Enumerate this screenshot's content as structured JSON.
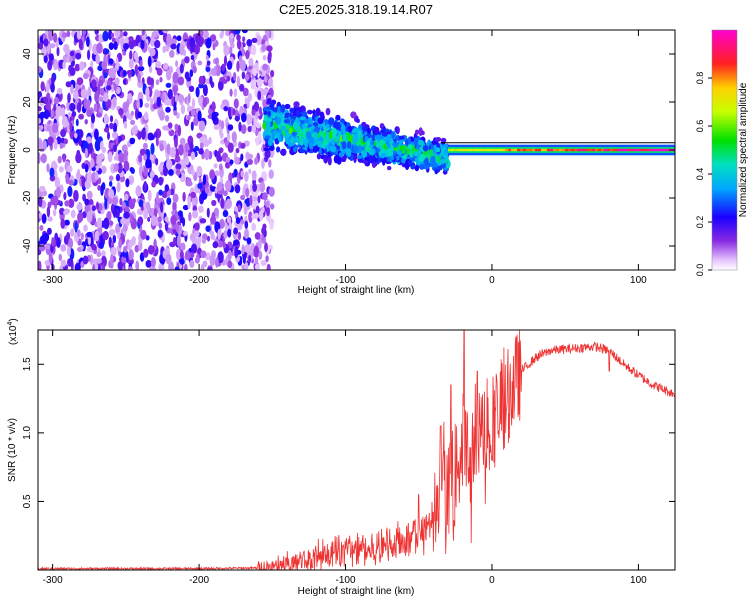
{
  "chart_data": [
    {
      "type": "heatmap",
      "title": "C2E5.2025.318.19.14.R07",
      "xlabel": "Height of straight line (km)",
      "ylabel": "Frequency (Hz)",
      "xlim": [
        -310,
        125
      ],
      "ylim": [
        -50,
        50
      ],
      "xticks": [
        -300,
        -200,
        -100,
        0,
        100
      ],
      "xtick_labels": [
        "-300",
        "-200",
        "-100",
        "0",
        "100"
      ],
      "yticks": [
        -40,
        -20,
        0,
        20,
        40
      ],
      "ytick_labels": [
        "-40",
        "-20",
        "0",
        "20",
        "40"
      ],
      "colorbar": {
        "label": "Normalized spectral amplitude",
        "range": [
          0,
          1
        ],
        "ticks": [
          0.0,
          0.2,
          0.4,
          0.6,
          0.8
        ],
        "tick_labels": [
          "0.0",
          "0.2",
          "0.4",
          "0.6",
          "0.8"
        ]
      },
      "regions": [
        {
          "name": "broadband noise",
          "x": [
            -310,
            -150
          ],
          "freq": [
            -50,
            50
          ],
          "amplitude": [
            0.05,
            0.25
          ]
        },
        {
          "name": "descending band",
          "x": [
            -155,
            -30
          ],
          "center_freq": [
            10,
            -3
          ],
          "halfwidth": [
            10,
            6
          ],
          "amplitude": [
            0.2,
            0.55
          ]
        },
        {
          "name": "narrow tone",
          "x": [
            -30,
            125
          ],
          "center_freq": [
            0,
            0
          ],
          "halfwidth": [
            2,
            2
          ],
          "amplitude": [
            0.4,
            0.95
          ]
        }
      ],
      "line_freq": 3
    },
    {
      "type": "line",
      "xlabel": "Height of straight line (km)",
      "ylabel": "SNR (10 * v/v)",
      "y_multiplier_label": "(x10",
      "y_multiplier_exp": "4",
      "xlim": [
        -310,
        125
      ],
      "ylim": [
        0,
        1.75
      ],
      "xticks": [
        -300,
        -200,
        -100,
        0,
        100
      ],
      "xtick_labels": [
        "-300",
        "-200",
        "-100",
        "0",
        "100"
      ],
      "yticks": [
        0.5,
        1.0,
        1.5
      ],
      "ytick_labels": [
        "0.5",
        "1.0",
        "1.5"
      ],
      "color": "#ee3333",
      "x": [
        -310,
        -200,
        -160,
        -140,
        -120,
        -100,
        -80,
        -70,
        -60,
        -50,
        -40,
        -35,
        -30,
        -25,
        -20,
        -15,
        -10,
        -5,
        0,
        5,
        10,
        15,
        20,
        30,
        40,
        50,
        60,
        70,
        80,
        90,
        100,
        110,
        125
      ],
      "y": [
        0.01,
        0.01,
        0.015,
        0.04,
        0.08,
        0.12,
        0.15,
        0.2,
        0.22,
        0.26,
        0.35,
        0.5,
        0.6,
        0.65,
        0.95,
        0.8,
        0.85,
        1.05,
        1.05,
        1.15,
        1.25,
        1.35,
        1.45,
        1.55,
        1.6,
        1.61,
        1.62,
        1.63,
        1.6,
        1.5,
        1.42,
        1.35,
        1.28
      ],
      "spikes": [
        {
          "x": -50,
          "y": 0.55
        },
        {
          "x": -35,
          "y": 1.05
        },
        {
          "x": -28,
          "y": 1.35
        },
        {
          "x": -19,
          "y": 1.75
        },
        {
          "x": -10,
          "y": 1.45
        },
        {
          "x": 80,
          "y": 1.45
        }
      ]
    }
  ]
}
